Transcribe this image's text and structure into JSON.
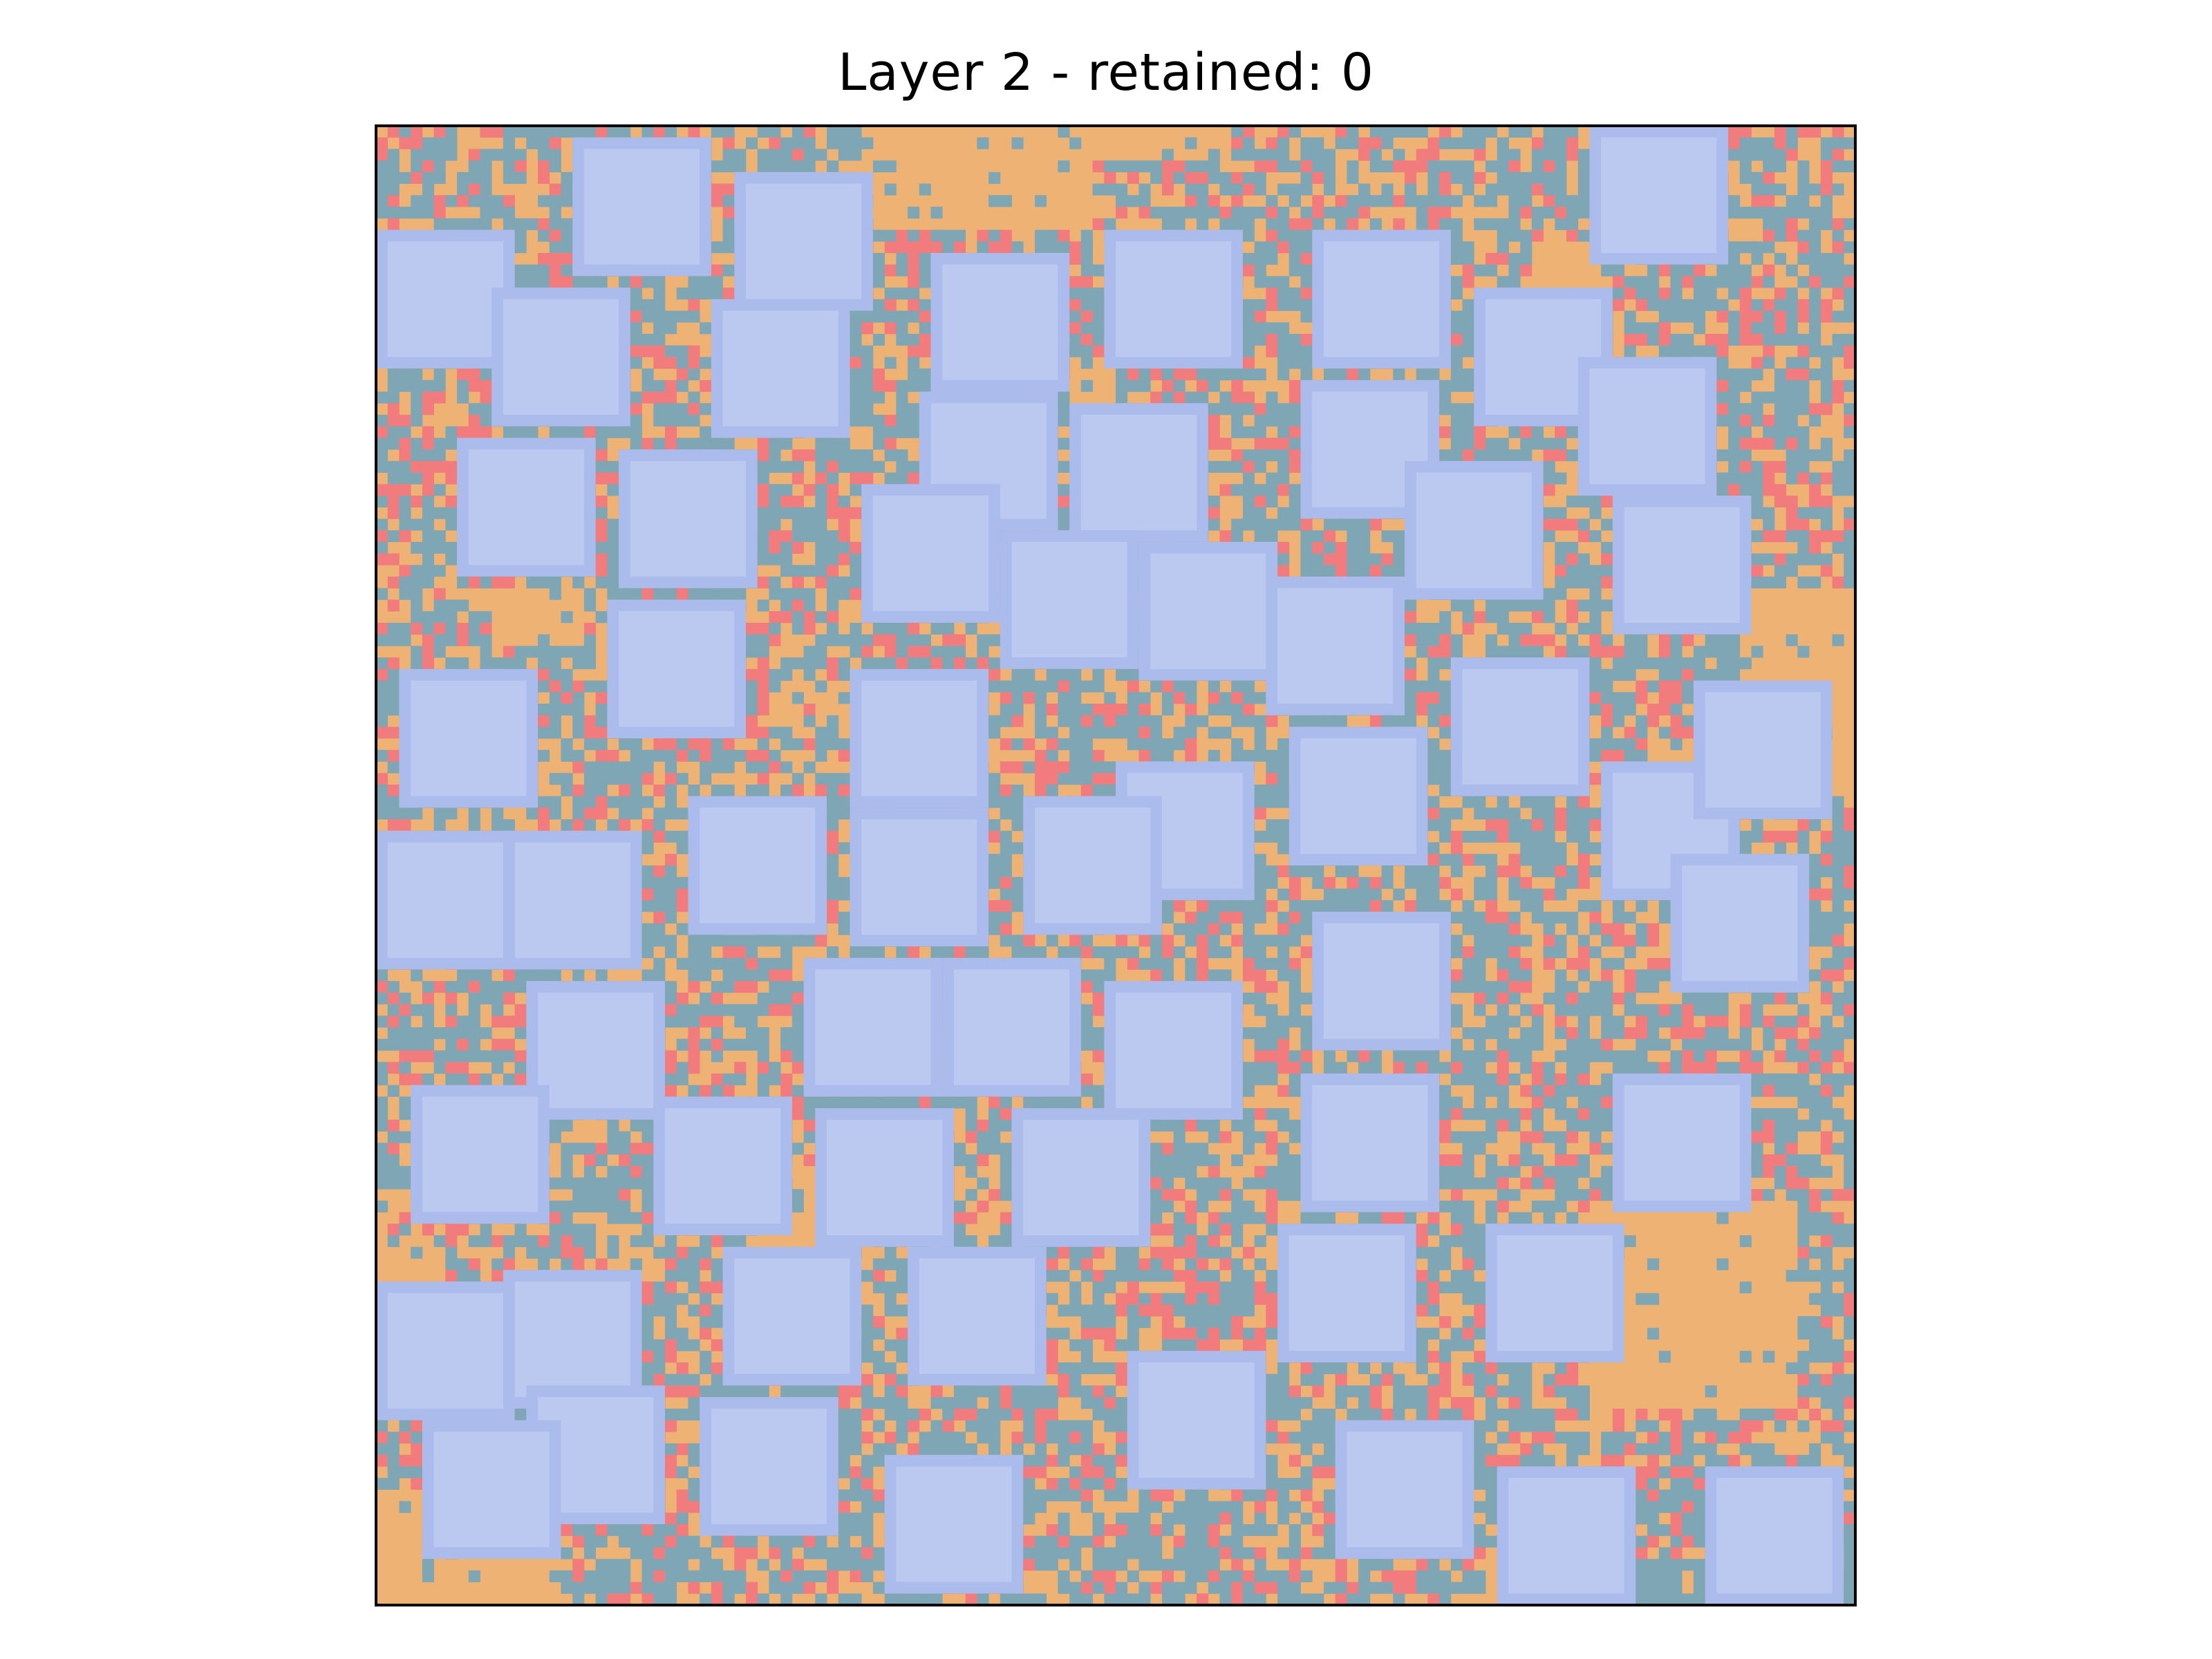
{
  "title": "Layer 2 - retained: 0",
  "grid": {
    "columns": 128,
    "rows": 128,
    "random_seed": 7
  },
  "colors": {
    "background_orange": "#eeb374",
    "cell_teal": "#7fa6b4",
    "cell_red": "#f27c7d",
    "tile_fill": "#bbc9f1",
    "tile_border": "#aabbec",
    "frame": "#000000",
    "page": "#ffffff"
  },
  "legend": null
}
